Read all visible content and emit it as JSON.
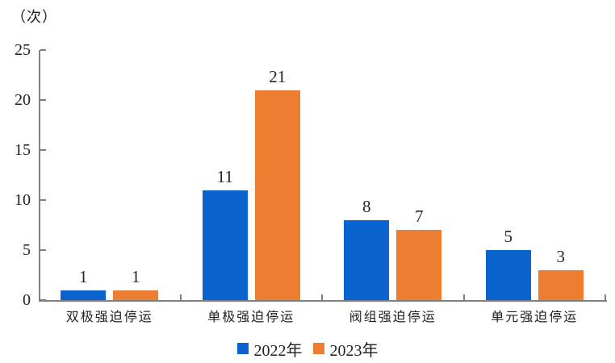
{
  "chart_data": {
    "type": "bar",
    "title": "",
    "unit_label": "（次）",
    "categories": [
      "双极强迫停运",
      "单极强迫停运",
      "阀组强迫停运",
      "单元强迫停运"
    ],
    "series": [
      {
        "name": "2022年",
        "color": "#0B64CE",
        "values": [
          1,
          11,
          8,
          5
        ]
      },
      {
        "name": "2023年",
        "color": "#ED7D31",
        "values": [
          1,
          21,
          7,
          3
        ]
      }
    ],
    "ylim": [
      0,
      25
    ],
    "yticks": [
      0,
      5,
      10,
      15,
      20,
      25
    ],
    "grid": false,
    "legend_position": "bottom",
    "bar_value_labels": true
  },
  "style": {
    "axis_color": "#7F7F7F",
    "text_color": "#1F1F1F",
    "background": "#FFFFFF"
  }
}
